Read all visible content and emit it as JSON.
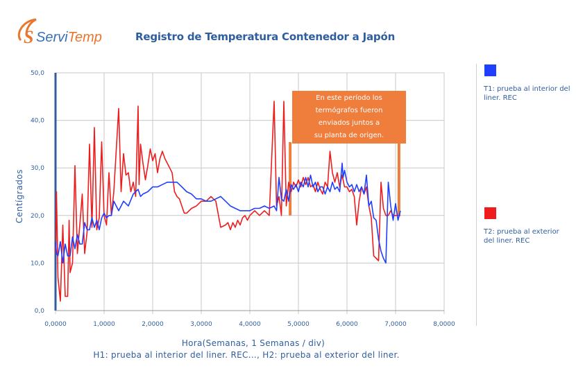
{
  "logo": {
    "text_main": "Servi",
    "text_accent": "Temp",
    "colors": {
      "orange": "#e8762d",
      "blue": "#3a6fb7"
    }
  },
  "colors": {
    "t1": "#1f3fff",
    "t2": "#ee1c1c",
    "axis": "#2f5e9e",
    "annotation_bg": "#ef7d3c",
    "grid": "#c8c8c8"
  },
  "chart_data": {
    "type": "line",
    "title": "Registro de Temperatura Contenedor a Japón",
    "xlabel": "Hora(Semanas, 1 Semanas / div)",
    "xsub": "H1: prueba al interior del liner. REC..., H2: prueba al exterior del liner.",
    "ylabel": "Centígrados",
    "xlim": [
      0,
      8
    ],
    "ylim": [
      0,
      50
    ],
    "xticks": [
      0,
      1,
      2,
      3,
      4,
      5,
      6,
      7,
      8
    ],
    "yticks": [
      0,
      10,
      20,
      30,
      40,
      50
    ],
    "xtick_labels": [
      "0,0000",
      "1,0000",
      "2,0000",
      "3,0000",
      "4,0000",
      "5,0000",
      "6,0000",
      "7,0000",
      "8,0000"
    ],
    "ytick_labels": [
      "0,0",
      "10,0",
      "20,0",
      "30,0",
      "40,0",
      "50,0"
    ],
    "grid": true,
    "annotation": "En este período los\ntermógrafos fueron\nenviados juntos a\nsu planta de origen.",
    "series": [
      {
        "name": "T1",
        "legend": "T1: prueba al interior del liner. REC",
        "x": [
          0.0,
          0.02,
          0.05,
          0.1,
          0.15,
          0.2,
          0.25,
          0.3,
          0.35,
          0.4,
          0.45,
          0.5,
          0.55,
          0.6,
          0.65,
          0.7,
          0.75,
          0.8,
          0.85,
          0.9,
          0.95,
          1.0,
          1.05,
          1.1,
          1.15,
          1.2,
          1.25,
          1.3,
          1.4,
          1.5,
          1.6,
          1.7,
          1.75,
          1.8,
          1.9,
          2.0,
          2.1,
          2.2,
          2.3,
          2.4,
          2.5,
          2.6,
          2.7,
          2.8,
          2.9,
          3.0,
          3.1,
          3.2,
          3.3,
          3.4,
          3.5,
          3.6,
          3.7,
          3.8,
          3.9,
          4.0,
          4.1,
          4.2,
          4.3,
          4.4,
          4.5,
          4.55,
          4.6,
          4.65,
          4.7,
          4.75,
          4.8,
          4.85,
          4.9,
          4.95,
          5.0,
          5.05,
          5.1,
          5.15,
          5.2,
          5.25,
          5.3,
          5.35,
          5.4,
          5.45,
          5.5,
          5.55,
          5.6,
          5.65,
          5.7,
          5.75,
          5.8,
          5.85,
          5.9,
          5.92,
          5.95,
          6.0,
          6.05,
          6.1,
          6.15,
          6.2,
          6.25,
          6.3,
          6.35,
          6.4,
          6.45,
          6.5,
          6.55,
          6.6,
          6.65,
          6.7,
          6.75,
          6.8,
          6.85,
          6.9,
          6.95,
          7.0,
          7.05,
          7.1
        ],
        "values": [
          14.5,
          12.0,
          11.5,
          14.5,
          10.0,
          14.0,
          11.5,
          11.5,
          15.5,
          13.0,
          16.0,
          14.0,
          14.0,
          18.5,
          17.0,
          17.0,
          19.5,
          17.5,
          19.0,
          17.0,
          19.5,
          20.5,
          19.5,
          20.0,
          20.0,
          23.0,
          22.0,
          21.0,
          23.0,
          22.0,
          24.5,
          25.5,
          24.0,
          24.5,
          25.0,
          26.0,
          26.0,
          26.5,
          27.0,
          27.0,
          27.0,
          26.0,
          25.0,
          24.5,
          23.5,
          23.5,
          23.0,
          23.0,
          23.5,
          24.0,
          23.0,
          22.0,
          21.5,
          21.0,
          21.0,
          21.0,
          21.5,
          21.5,
          22.0,
          21.5,
          22.0,
          21.0,
          28.0,
          23.5,
          23.0,
          25.5,
          23.0,
          26.5,
          25.5,
          26.5,
          25.0,
          27.0,
          26.0,
          28.0,
          26.0,
          28.5,
          26.0,
          27.0,
          25.0,
          26.0,
          26.0,
          24.5,
          26.0,
          25.0,
          27.0,
          25.5,
          26.0,
          25.0,
          31.0,
          28.0,
          29.5,
          27.0,
          26.0,
          26.5,
          25.0,
          26.5,
          25.0,
          26.0,
          24.5,
          28.5,
          22.0,
          23.0,
          19.5,
          19.0,
          15.0,
          12.5,
          11.0,
          10.0,
          27.0,
          22.0,
          19.0,
          22.5,
          19.0,
          21.0
        ]
      },
      {
        "name": "T2",
        "legend": "T2: prueba al exterior del liner. REC",
        "x": [
          0.0,
          0.02,
          0.05,
          0.1,
          0.15,
          0.2,
          0.25,
          0.28,
          0.3,
          0.35,
          0.4,
          0.45,
          0.5,
          0.55,
          0.6,
          0.65,
          0.7,
          0.75,
          0.8,
          0.85,
          0.9,
          0.95,
          1.0,
          1.05,
          1.1,
          1.15,
          1.2,
          1.3,
          1.35,
          1.4,
          1.45,
          1.5,
          1.55,
          1.6,
          1.65,
          1.7,
          1.72,
          1.75,
          1.8,
          1.85,
          1.9,
          1.95,
          2.0,
          2.05,
          2.1,
          2.15,
          2.2,
          2.25,
          2.3,
          2.35,
          2.4,
          2.45,
          2.5,
          2.55,
          2.6,
          2.65,
          2.7,
          2.8,
          2.9,
          3.0,
          3.1,
          3.2,
          3.3,
          3.4,
          3.5,
          3.55,
          3.6,
          3.65,
          3.7,
          3.75,
          3.8,
          3.85,
          3.9,
          3.95,
          4.0,
          4.1,
          4.2,
          4.3,
          4.4,
          4.5,
          4.55,
          4.6,
          4.62,
          4.65,
          4.7,
          4.75,
          4.8,
          4.85,
          4.88,
          4.9,
          4.95,
          5.0,
          5.05,
          5.1,
          5.15,
          5.2,
          5.25,
          5.3,
          5.35,
          5.4,
          5.45,
          5.5,
          5.55,
          5.6,
          5.65,
          5.7,
          5.75,
          5.8,
          5.85,
          5.9,
          5.95,
          6.0,
          6.05,
          6.1,
          6.15,
          6.2,
          6.25,
          6.3,
          6.35,
          6.4,
          6.45,
          6.5,
          6.55,
          6.6,
          6.65,
          6.7,
          6.75,
          6.8,
          6.85,
          6.9,
          6.95,
          7.0,
          7.05,
          7.1
        ],
        "values": [
          12.0,
          25.0,
          7.0,
          2.0,
          18.0,
          3.0,
          3.0,
          19.0,
          8.0,
          10.0,
          30.5,
          12.0,
          18.0,
          24.5,
          12.0,
          16.5,
          35.0,
          17.5,
          38.5,
          17.0,
          19.5,
          35.5,
          20.0,
          18.0,
          29.0,
          20.0,
          25.0,
          42.5,
          25.0,
          33.0,
          28.5,
          29.0,
          25.0,
          27.0,
          24.0,
          43.0,
          26.5,
          35.0,
          31.0,
          27.5,
          30.5,
          34.0,
          31.5,
          33.0,
          29.0,
          32.0,
          33.5,
          32.0,
          31.0,
          30.0,
          29.0,
          25.0,
          24.0,
          23.5,
          22.0,
          20.5,
          20.5,
          21.5,
          22.0,
          23.0,
          23.0,
          24.0,
          23.0,
          17.5,
          18.0,
          18.5,
          17.0,
          18.5,
          17.5,
          19.0,
          18.0,
          19.5,
          20.0,
          19.0,
          20.0,
          21.0,
          20.0,
          21.0,
          20.0,
          44.0,
          22.0,
          24.0,
          22.5,
          20.0,
          44.0,
          22.0,
          27.0,
          25.0,
          26.0,
          27.0,
          26.0,
          27.5,
          26.0,
          28.0,
          26.5,
          28.0,
          26.0,
          26.5,
          25.0,
          27.0,
          25.5,
          24.5,
          27.0,
          26.0,
          33.5,
          29.0,
          27.0,
          29.0,
          26.0,
          28.5,
          26.0,
          26.0,
          25.0,
          25.5,
          24.0,
          18.0,
          23.0,
          26.0,
          24.5,
          26.0,
          22.0,
          19.5,
          11.5,
          11.0,
          10.5,
          27.0,
          21.5,
          20.0,
          20.0,
          21.0,
          20.0,
          20.0,
          20.0,
          20.0
        ]
      }
    ]
  }
}
